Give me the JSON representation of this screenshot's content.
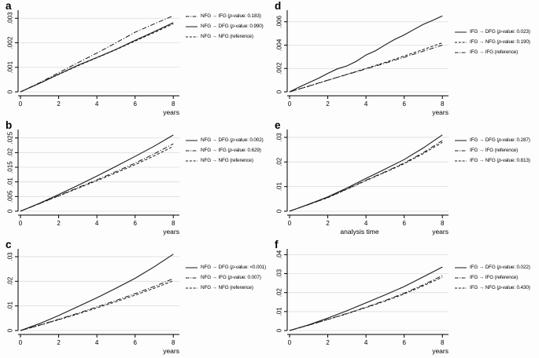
{
  "colors": {
    "line": "#1a1a1a",
    "grid": "#dcdcdc",
    "axis": "#000000",
    "text": "#000000"
  },
  "chart_data": [
    {
      "type": "line",
      "panel": "a",
      "xlabel": "years",
      "xlim": [
        0,
        8.32
      ],
      "ylim": [
        0,
        0.0032
      ],
      "grid": true,
      "legend_position": "right",
      "x_tick_values": [
        0,
        2,
        4,
        6,
        8
      ],
      "x_tick_labels": [
        "0",
        "2",
        "4",
        "6",
        "8"
      ],
      "y_tick_values": [
        0,
        0.001,
        0.002,
        0.003
      ],
      "y_tick_labels": [
        "0",
        ".001",
        ".002",
        ".003"
      ],
      "series": [
        {
          "name": "NFG → IFG (p-value: 0.183)",
          "style": "dashdot",
          "x": [
            0,
            1,
            2,
            3,
            4,
            5,
            6,
            7,
            8
          ],
          "y": [
            0,
            0.00037,
            0.00078,
            0.00118,
            0.00158,
            0.002,
            0.00243,
            0.00277,
            0.0031
          ]
        },
        {
          "name": "NFG → DFG (p-value: 0.990)",
          "style": "solid",
          "x": [
            0,
            1,
            2,
            3,
            4,
            5,
            6,
            7,
            8
          ],
          "y": [
            0,
            0.00035,
            0.00072,
            0.00108,
            0.0014,
            0.00173,
            0.0021,
            0.00245,
            0.00282
          ]
        },
        {
          "name": "NFG → NFG  (reference)",
          "style": "dashed",
          "x": [
            0,
            1,
            2,
            3,
            4,
            5,
            6,
            7,
            8
          ],
          "y": [
            0,
            0.00035,
            0.00071,
            0.00106,
            0.00139,
            0.00172,
            0.00207,
            0.00242,
            0.00277
          ]
        }
      ]
    },
    {
      "type": "line",
      "panel": "b",
      "xlabel": "years",
      "xlim": [
        0,
        8.32
      ],
      "ylim": [
        0,
        0.0268
      ],
      "grid": true,
      "legend_position": "right",
      "x_tick_values": [
        0,
        2,
        4,
        6,
        8
      ],
      "x_tick_labels": [
        "0",
        "2",
        "4",
        "6",
        "8"
      ],
      "y_tick_values": [
        0,
        0.005,
        0.01,
        0.015,
        0.02,
        0.025
      ],
      "y_tick_labels": [
        "0",
        ".005",
        ".01",
        ".015",
        ".02",
        ".025"
      ],
      "series": [
        {
          "name": "NFG → DFG (p-value: 0.002)",
          "style": "solid",
          "x": [
            0,
            1,
            2,
            3,
            4,
            5,
            6,
            7,
            8
          ],
          "y": [
            0,
            0.0027,
            0.0057,
            0.0088,
            0.012,
            0.0153,
            0.0187,
            0.0222,
            0.026
          ]
        },
        {
          "name": "NFG → IFG (p-value: 0.629)",
          "style": "dashdot",
          "x": [
            0,
            1,
            2,
            3,
            4,
            5,
            6,
            7,
            8
          ],
          "y": [
            0,
            0.0026,
            0.0053,
            0.008,
            0.0107,
            0.0135,
            0.0164,
            0.0196,
            0.023
          ]
        },
        {
          "name": "NFG → NFG  (reference)",
          "style": "dashed",
          "x": [
            0,
            1,
            2,
            3,
            4,
            5,
            6,
            7,
            8
          ],
          "y": [
            0,
            0.0026,
            0.0052,
            0.0078,
            0.0104,
            0.0131,
            0.0159,
            0.0189,
            0.0221
          ]
        }
      ]
    },
    {
      "type": "line",
      "panel": "c",
      "xlabel": "years",
      "xlim": [
        0,
        8.32
      ],
      "ylim": [
        0,
        0.0319
      ],
      "grid": true,
      "legend_position": "right",
      "x_tick_values": [
        0,
        2,
        4,
        6,
        8
      ],
      "x_tick_labels": [
        "0",
        "2",
        "4",
        "6",
        "8"
      ],
      "y_tick_values": [
        0,
        0.01,
        0.02,
        0.03
      ],
      "y_tick_labels": [
        "0",
        ".01",
        ".02",
        ".03"
      ],
      "series": [
        {
          "name": "NFG → DFG (p-value: <0.001)",
          "style": "solid",
          "x": [
            0,
            1,
            2,
            3,
            4,
            5,
            6,
            7,
            8
          ],
          "y": [
            0,
            0.0028,
            0.0061,
            0.0097,
            0.0133,
            0.0172,
            0.0212,
            0.0259,
            0.031
          ]
        },
        {
          "name": "NFG → IFG (p-value: 0.007)",
          "style": "dashdot",
          "x": [
            0,
            1,
            2,
            3,
            4,
            5,
            6,
            7,
            8
          ],
          "y": [
            0,
            0.0022,
            0.0046,
            0.007,
            0.0096,
            0.0122,
            0.015,
            0.0179,
            0.0211
          ]
        },
        {
          "name": "NFG → NFG  (reference)",
          "style": "dashed",
          "x": [
            0,
            1,
            2,
            3,
            4,
            5,
            6,
            7,
            8
          ],
          "y": [
            0,
            0.0021,
            0.0044,
            0.0067,
            0.0092,
            0.0117,
            0.0144,
            0.0172,
            0.0202
          ]
        }
      ]
    },
    {
      "type": "line",
      "panel": "d",
      "xlabel": "years",
      "xlim": [
        0,
        8.32
      ],
      "ylim": [
        0,
        0.00672
      ],
      "grid": true,
      "legend_position": "right",
      "x_tick_values": [
        0,
        2,
        4,
        6,
        8
      ],
      "x_tick_labels": [
        "0",
        "2",
        "4",
        "6",
        "8"
      ],
      "y_tick_values": [
        0,
        0.002,
        0.004,
        0.006
      ],
      "y_tick_labels": [
        "0",
        ".002",
        ".004",
        ".006"
      ],
      "series": [
        {
          "name": "IFG → DFG (p-value: 0.023)",
          "style": "solid",
          "x": [
            0,
            0.5,
            1,
            1.5,
            2,
            2.5,
            3,
            3.5,
            4,
            4.5,
            5,
            5.5,
            6,
            6.5,
            7,
            7.5,
            8
          ],
          "y": [
            0,
            0.0004,
            0.00078,
            0.00115,
            0.00158,
            0.00197,
            0.00222,
            0.00262,
            0.00315,
            0.00352,
            0.00402,
            0.00448,
            0.00487,
            0.00533,
            0.00578,
            0.00612,
            0.0065
          ]
        },
        {
          "name": "IFG → NFG  (p-value: 0.190)",
          "style": "dashed",
          "x": [
            0,
            1,
            2,
            3,
            4,
            5,
            6,
            7,
            8
          ],
          "y": [
            0,
            0.00048,
            0.00099,
            0.0015,
            0.002,
            0.00252,
            0.00307,
            0.00362,
            0.0042
          ]
        },
        {
          "name": "IFG → IFG (reference)",
          "style": "dashdot",
          "x": [
            0,
            1,
            2,
            3,
            4,
            5,
            6,
            7,
            8
          ],
          "y": [
            0,
            0.0005,
            0.001,
            0.00148,
            0.00196,
            0.00245,
            0.00296,
            0.00348,
            0.004
          ]
        }
      ]
    },
    {
      "type": "line",
      "panel": "e",
      "xlabel": "years",
      "xlabel_center": "analysis time",
      "xlim": [
        0,
        8.32
      ],
      "ylim": [
        0,
        0.0319
      ],
      "grid": true,
      "legend_position": "right",
      "x_tick_values": [
        0,
        2,
        4,
        6,
        8
      ],
      "x_tick_labels": [
        "0",
        "2",
        "4",
        "6",
        "8"
      ],
      "y_tick_values": [
        0,
        0.01,
        0.02,
        0.03
      ],
      "y_tick_labels": [
        "0",
        ".01",
        ".02",
        ".03"
      ],
      "series": [
        {
          "name": "IFG → DFG (p-value: 0.287)",
          "style": "solid",
          "x": [
            0,
            1,
            2,
            3,
            4,
            5,
            6,
            7,
            8
          ],
          "y": [
            0,
            0.0028,
            0.0058,
            0.0094,
            0.0133,
            0.0171,
            0.021,
            0.0257,
            0.031
          ]
        },
        {
          "name": "IFG → IFG (reference)",
          "style": "dashdot",
          "x": [
            0,
            1,
            2,
            3,
            4,
            5,
            6,
            7,
            8
          ],
          "y": [
            0,
            0.0027,
            0.0056,
            0.009,
            0.0126,
            0.016,
            0.0196,
            0.0238,
            0.0287
          ]
        },
        {
          "name": "IFG → NFG  (p-value: 0.813)",
          "style": "dashed",
          "x": [
            0,
            1,
            2,
            3,
            4,
            5,
            6,
            7,
            8
          ],
          "y": [
            0,
            0.0027,
            0.0055,
            0.0089,
            0.0124,
            0.0158,
            0.0193,
            0.0234,
            0.028
          ]
        }
      ]
    },
    {
      "type": "line",
      "panel": "f",
      "xlabel": "years",
      "xlim": [
        0,
        8.32
      ],
      "ylim": [
        0,
        0.0414
      ],
      "grid": true,
      "legend_position": "right",
      "x_tick_values": [
        0,
        2,
        4,
        6,
        8
      ],
      "x_tick_labels": [
        "0",
        "2",
        "4",
        "6",
        "8"
      ],
      "y_tick_values": [
        0,
        0.01,
        0.02,
        0.03,
        0.04
      ],
      "y_tick_labels": [
        "0",
        ".01",
        ".02",
        ".03",
        ".04"
      ],
      "series": [
        {
          "name": "IFG → DFG (p-value: 0.022)",
          "style": "solid",
          "x": [
            0,
            1,
            2,
            3,
            4,
            5,
            6,
            7,
            8
          ],
          "y": [
            0,
            0.003,
            0.0066,
            0.0104,
            0.0146,
            0.0188,
            0.0232,
            0.0283,
            0.0335
          ]
        },
        {
          "name": "IFG → IFG (reference)",
          "style": "dashdot",
          "x": [
            0,
            1,
            2,
            3,
            4,
            5,
            6,
            7,
            8
          ],
          "y": [
            0,
            0.0028,
            0.0059,
            0.009,
            0.0123,
            0.0158,
            0.0197,
            0.0241,
            0.029
          ]
        },
        {
          "name": "IFG → NFG  (p-value: 0.430)",
          "style": "dashed",
          "x": [
            0,
            1,
            2,
            3,
            4,
            5,
            6,
            7,
            8
          ],
          "y": [
            0,
            0.0028,
            0.0058,
            0.0088,
            0.0121,
            0.0155,
            0.0193,
            0.0236,
            0.0281
          ]
        }
      ]
    }
  ]
}
